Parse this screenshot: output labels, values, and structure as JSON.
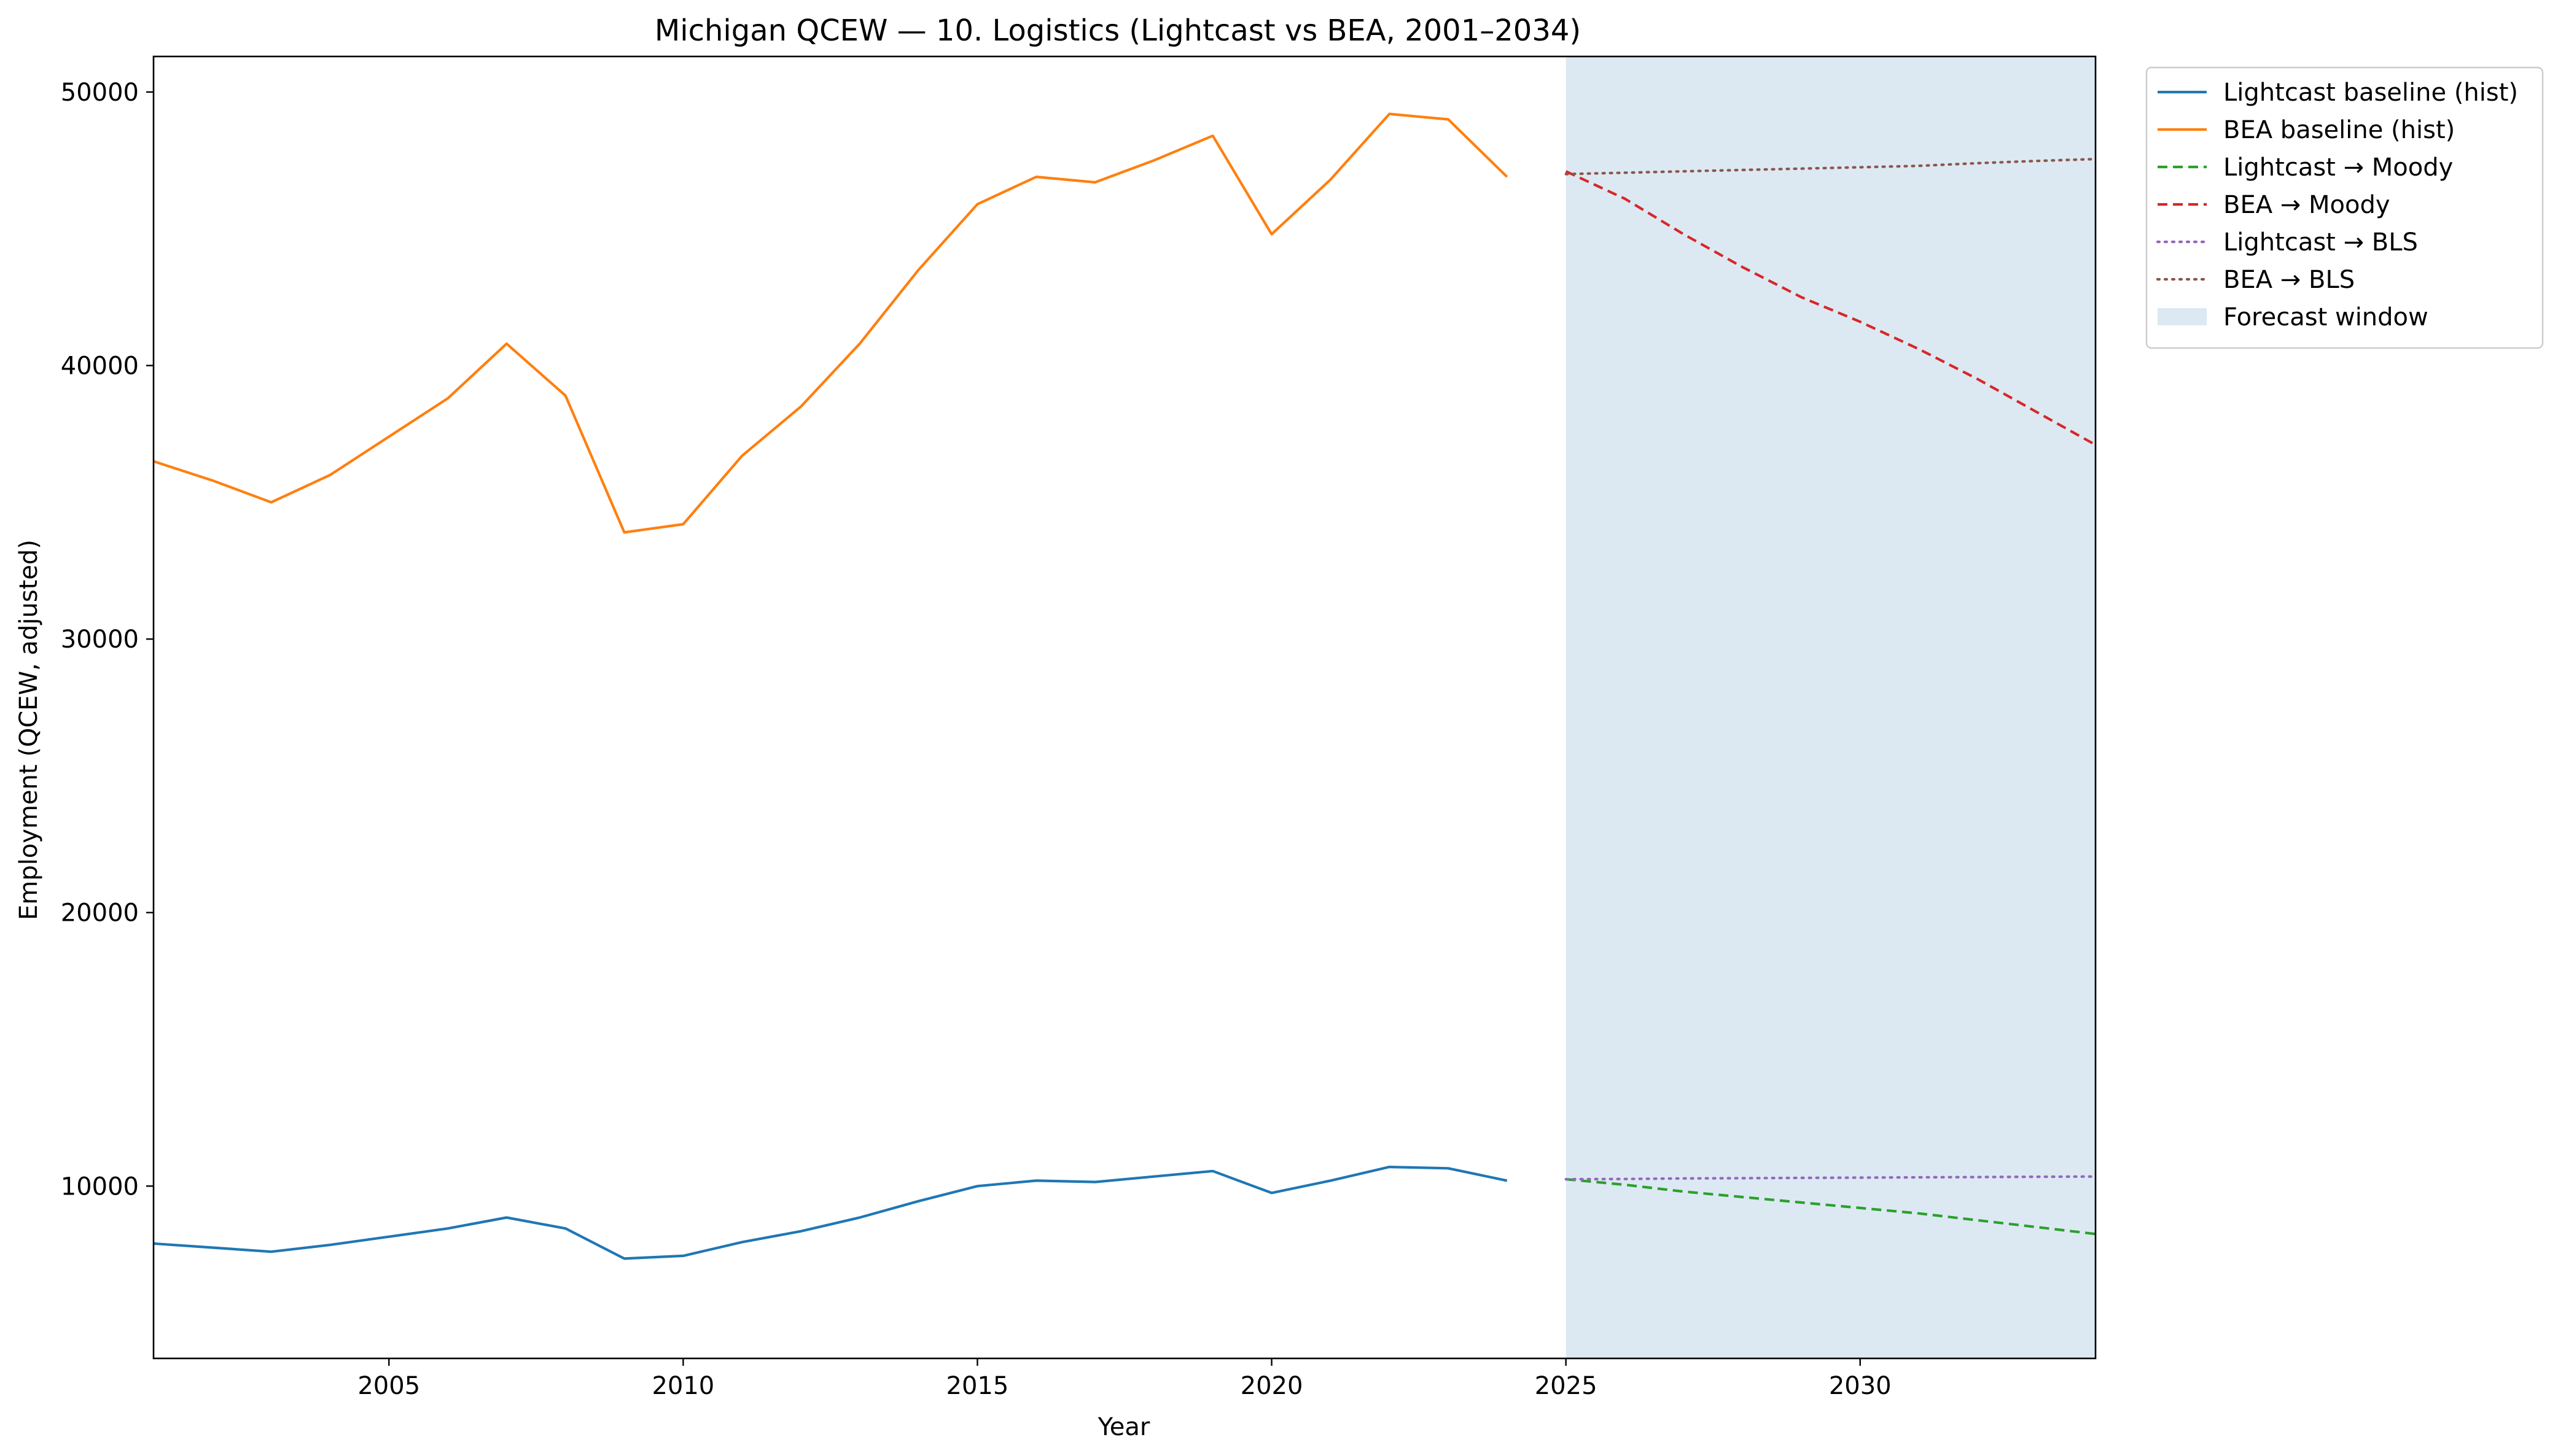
{
  "chart_data": {
    "type": "line",
    "title": "Michigan QCEW — 10. Logistics (Lightcast vs BEA, 2001–2034)",
    "xlabel": "Year",
    "ylabel": "Employment (QCEW, adjusted)",
    "xlim": [
      2001,
      2034
    ],
    "ylim": [
      3700,
      51300
    ],
    "x_ticks": [
      2005,
      2010,
      2015,
      2020,
      2025,
      2030
    ],
    "y_ticks": [
      10000,
      20000,
      30000,
      40000,
      50000
    ],
    "grid": false,
    "legend_position": "outside-top-right",
    "forecast_window": {
      "label": "Forecast window",
      "x_start": 2025,
      "x_end": 2034,
      "color": "#dce9f3"
    },
    "series": [
      {
        "name": "Lightcast baseline (hist)",
        "color": "#1f77b4",
        "style": "solid",
        "x": [
          2001,
          2002,
          2003,
          2004,
          2005,
          2006,
          2007,
          2008,
          2009,
          2010,
          2011,
          2012,
          2013,
          2014,
          2015,
          2016,
          2017,
          2018,
          2019,
          2020,
          2021,
          2022,
          2023,
          2024
        ],
        "y": [
          7900,
          7750,
          7600,
          7850,
          8150,
          8450,
          8850,
          8450,
          7350,
          7450,
          7950,
          8350,
          8850,
          9450,
          10000,
          10200,
          10150,
          10350,
          10550,
          9750,
          10200,
          10700,
          10650,
          10200
        ]
      },
      {
        "name": "BEA baseline (hist)",
        "color": "#ff7f0e",
        "style": "solid",
        "x": [
          2001,
          2002,
          2003,
          2004,
          2005,
          2006,
          2007,
          2008,
          2009,
          2010,
          2011,
          2012,
          2013,
          2014,
          2015,
          2016,
          2017,
          2018,
          2019,
          2020,
          2021,
          2022,
          2023,
          2024
        ],
        "y": [
          36500,
          35800,
          35000,
          36000,
          37400,
          38800,
          40800,
          38900,
          33900,
          34200,
          36700,
          38500,
          40800,
          43500,
          45900,
          46900,
          46700,
          47500,
          48400,
          44800,
          46800,
          49200,
          49000,
          46900
        ]
      },
      {
        "name": "Lightcast → Moody",
        "color": "#2ca02c",
        "style": "dashed",
        "x": [
          2025,
          2026,
          2027,
          2028,
          2029,
          2030,
          2031,
          2032,
          2033,
          2034
        ],
        "y": [
          10250,
          10050,
          9800,
          9600,
          9400,
          9200,
          9000,
          8750,
          8500,
          8250
        ]
      },
      {
        "name": "BEA → Moody",
        "color": "#d62728",
        "style": "dashed",
        "x": [
          2025,
          2026,
          2027,
          2028,
          2029,
          2030,
          2031,
          2032,
          2033,
          2034
        ],
        "y": [
          47100,
          46100,
          44800,
          43600,
          42500,
          41600,
          40600,
          39500,
          38300,
          37100
        ]
      },
      {
        "name": "Lightcast → BLS",
        "color": "#9467bd",
        "style": "dotted",
        "x": [
          2025,
          2026,
          2027,
          2028,
          2029,
          2030,
          2031,
          2032,
          2033,
          2034
        ],
        "y": [
          10250,
          10260,
          10280,
          10290,
          10300,
          10310,
          10320,
          10330,
          10340,
          10350
        ]
      },
      {
        "name": "BEA → BLS",
        "color": "#8c564b",
        "style": "dotted",
        "x": [
          2025,
          2026,
          2027,
          2028,
          2029,
          2030,
          2031,
          2032,
          2033,
          2034
        ],
        "y": [
          47000,
          47050,
          47100,
          47150,
          47200,
          47250,
          47300,
          47400,
          47480,
          47550
        ]
      }
    ]
  }
}
